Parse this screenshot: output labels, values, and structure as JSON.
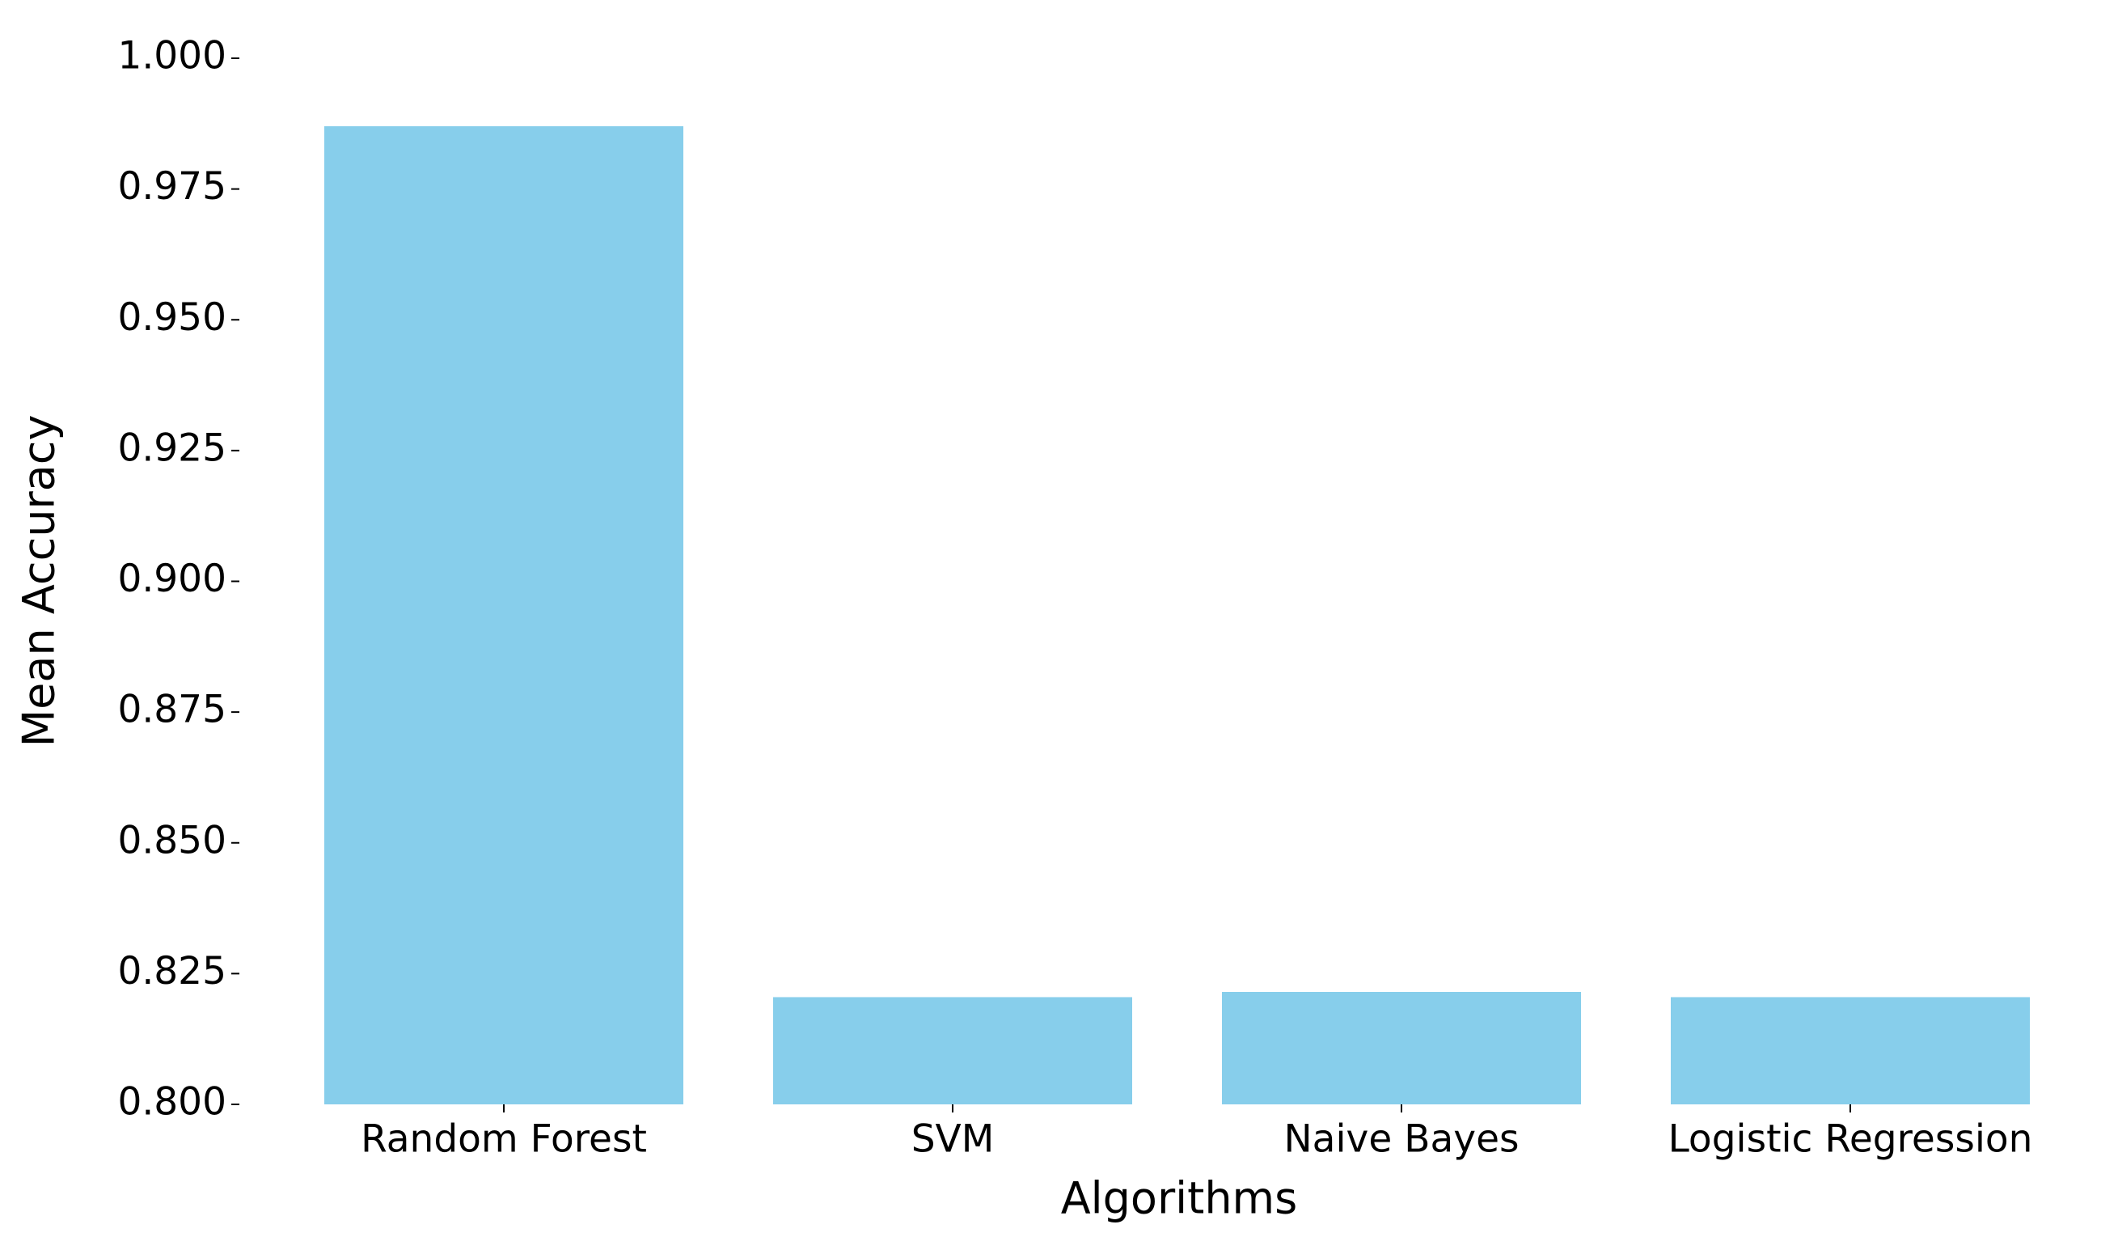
{
  "chart_data": {
    "type": "bar",
    "x_label": "Algorithms",
    "y_label": "Mean Accuracy",
    "categories": [
      "Random Forest",
      "SVM",
      "Naive Bayes",
      "Logistic Regression"
    ],
    "values": [
      0.987,
      0.8205,
      0.8215,
      0.8205
    ],
    "color": "#87ceeb",
    "ylim": [
      0.8,
      1.0
    ],
    "yticks": [
      {
        "value": 0.8,
        "label": "0.800"
      },
      {
        "value": 0.825,
        "label": "0.825"
      },
      {
        "value": 0.85,
        "label": "0.850"
      },
      {
        "value": 0.875,
        "label": "0.875"
      },
      {
        "value": 0.9,
        "label": "0.900"
      },
      {
        "value": 0.925,
        "label": "0.925"
      },
      {
        "value": 0.95,
        "label": "0.950"
      },
      {
        "value": 0.975,
        "label": "0.975"
      },
      {
        "value": 1.0,
        "label": "1.000"
      }
    ],
    "grid": false
  }
}
